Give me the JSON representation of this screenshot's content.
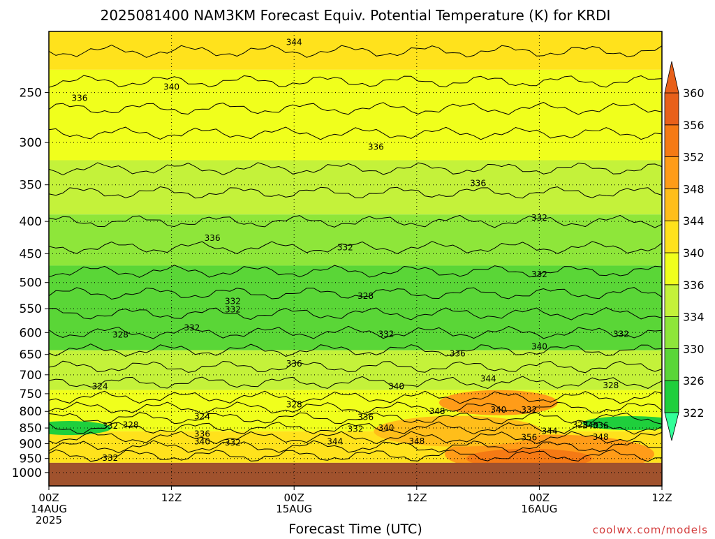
{
  "credit": "coolwx.com/models",
  "chart_data": {
    "type": "contour",
    "title": "2025081400 NAM3KM Forecast Equiv. Potential Temperature (K) for KRDI",
    "xlabel": "Forecast Time (UTC)",
    "ylabel": "",
    "x_ticks": [
      {
        "hour": 0,
        "lines": [
          "00Z",
          "14AUG",
          "2025"
        ]
      },
      {
        "hour": 12,
        "lines": [
          "12Z"
        ]
      },
      {
        "hour": 24,
        "lines": [
          "00Z",
          "15AUG"
        ]
      },
      {
        "hour": 36,
        "lines": [
          "12Z"
        ]
      },
      {
        "hour": 48,
        "lines": [
          "00Z",
          "16AUG"
        ]
      },
      {
        "hour": 60,
        "lines": [
          "12Z"
        ]
      }
    ],
    "xlim": [
      0,
      60
    ],
    "y_ticks": [
      250,
      300,
      350,
      400,
      450,
      500,
      550,
      600,
      650,
      700,
      750,
      800,
      850,
      900,
      950,
      1000
    ],
    "ylim": [
      1050,
      200
    ],
    "y_scale": "log",
    "ground_pressure": 965,
    "grid": true,
    "colorbar": {
      "levels": [
        322,
        326,
        330,
        334,
        336,
        340,
        344,
        348,
        352,
        356,
        360
      ],
      "colors": [
        "#33ff99",
        "#1fcf3c",
        "#5ad637",
        "#8ee63a",
        "#c4f23a",
        "#f0ff1c",
        "#ffe21c",
        "#ffbe1a",
        "#ff9c18",
        "#f57a14",
        "#e8601a"
      ],
      "placement": "right"
    },
    "bands": [
      {
        "top": 200,
        "bottom": 230,
        "color": "#ffe21c"
      },
      {
        "top": 230,
        "bottom": 320,
        "color": "#f0ff1c"
      },
      {
        "top": 320,
        "bottom": 390,
        "color": "#c4f23a"
      },
      {
        "top": 390,
        "bottom": 470,
        "color": "#8ee63a"
      },
      {
        "top": 470,
        "bottom": 640,
        "color": "#5ad637"
      },
      {
        "top": 640,
        "bottom": 740,
        "color": "#c4f23a"
      },
      {
        "top": 740,
        "bottom": 860,
        "color": "#f0ff1c"
      },
      {
        "top": 860,
        "bottom": 965,
        "color": "#ffe21c"
      }
    ],
    "contour_labels": [
      {
        "text": "344",
        "x": 24,
        "p": 208
      },
      {
        "text": "340",
        "x": 12,
        "p": 245
      },
      {
        "text": "336",
        "x": 3,
        "p": 255
      },
      {
        "text": "336",
        "x": 32,
        "p": 305
      },
      {
        "text": "336",
        "x": 42,
        "p": 348
      },
      {
        "text": "332",
        "x": 48,
        "p": 395
      },
      {
        "text": "336",
        "x": 16,
        "p": 425
      },
      {
        "text": "332",
        "x": 29,
        "p": 440
      },
      {
        "text": "332",
        "x": 48,
        "p": 485
      },
      {
        "text": "328",
        "x": 31,
        "p": 525
      },
      {
        "text": "332",
        "x": 18,
        "p": 535
      },
      {
        "text": "332",
        "x": 18,
        "p": 552
      },
      {
        "text": "332",
        "x": 14,
        "p": 590
      },
      {
        "text": "328",
        "x": 7,
        "p": 605
      },
      {
        "text": "332",
        "x": 33,
        "p": 603
      },
      {
        "text": "332",
        "x": 56,
        "p": 603
      },
      {
        "text": "340",
        "x": 48,
        "p": 632
      },
      {
        "text": "336",
        "x": 40,
        "p": 648
      },
      {
        "text": "336",
        "x": 24,
        "p": 672
      },
      {
        "text": "344",
        "x": 43,
        "p": 710
      },
      {
        "text": "324",
        "x": 5,
        "p": 730
      },
      {
        "text": "340",
        "x": 34,
        "p": 730
      },
      {
        "text": "328",
        "x": 55,
        "p": 728
      },
      {
        "text": "328",
        "x": 24,
        "p": 780
      },
      {
        "text": "348",
        "x": 38,
        "p": 800
      },
      {
        "text": "340",
        "x": 44,
        "p": 795
      },
      {
        "text": "332",
        "x": 47,
        "p": 795
      },
      {
        "text": "324",
        "x": 15,
        "p": 815
      },
      {
        "text": "336",
        "x": 31,
        "p": 817
      },
      {
        "text": "332",
        "x": 6,
        "p": 843
      },
      {
        "text": "328",
        "x": 8,
        "p": 840
      },
      {
        "text": "328",
        "x": 52,
        "p": 840
      },
      {
        "text": "340",
        "x": 53,
        "p": 842
      },
      {
        "text": "336",
        "x": 54,
        "p": 842
      },
      {
        "text": "332",
        "x": 30,
        "p": 853
      },
      {
        "text": "340",
        "x": 33,
        "p": 850
      },
      {
        "text": "344",
        "x": 49,
        "p": 860
      },
      {
        "text": "336",
        "x": 15,
        "p": 868
      },
      {
        "text": "348",
        "x": 54,
        "p": 878
      },
      {
        "text": "356",
        "x": 47,
        "p": 880
      },
      {
        "text": "340",
        "x": 15,
        "p": 893
      },
      {
        "text": "332",
        "x": 18,
        "p": 897
      },
      {
        "text": "344",
        "x": 28,
        "p": 893
      },
      {
        "text": "348",
        "x": 36,
        "p": 892
      },
      {
        "text": "332",
        "x": 6,
        "p": 948
      }
    ]
  }
}
